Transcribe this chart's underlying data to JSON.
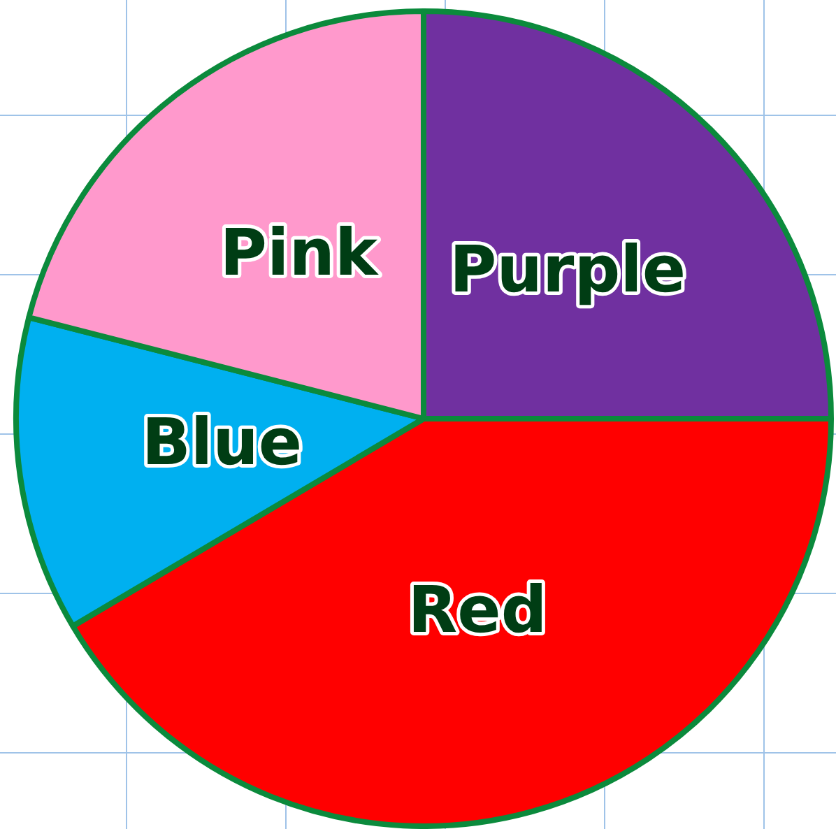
{
  "chart_data": {
    "type": "pie",
    "categories": [
      "Purple",
      "Red",
      "Blue",
      "Pink"
    ],
    "values": [
      25,
      41.5,
      12.5,
      21
    ],
    "colors": [
      "#7030a0",
      "#ff0000",
      "#00b0f0",
      "#ff99cc"
    ],
    "legend": false
  }
}
